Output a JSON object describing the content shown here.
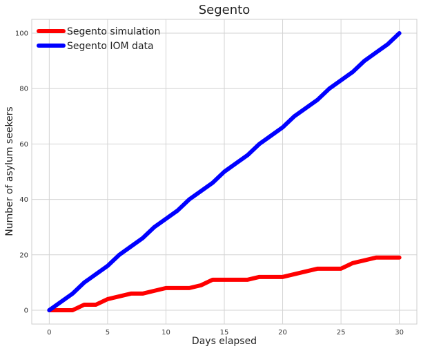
{
  "chart_data": {
    "type": "line",
    "title": "Segento",
    "xlabel": "Days elapsed",
    "ylabel": "Number of asylum seekers",
    "xlim": [
      -1.5,
      31.5
    ],
    "ylim": [
      -5,
      105
    ],
    "xticks": [
      0,
      5,
      10,
      15,
      20,
      25,
      30
    ],
    "yticks": [
      0,
      20,
      40,
      60,
      80,
      100
    ],
    "grid": true,
    "legend_position": "upper-left",
    "x": [
      0,
      1,
      2,
      3,
      4,
      5,
      6,
      7,
      8,
      9,
      10,
      11,
      12,
      13,
      14,
      15,
      16,
      17,
      18,
      19,
      20,
      21,
      22,
      23,
      24,
      25,
      26,
      27,
      28,
      29,
      30
    ],
    "series": [
      {
        "name": "Segento simulation",
        "color": "#ff0000",
        "values": [
          0,
          0,
          0,
          2,
          2,
          4,
          5,
          6,
          6,
          7,
          8,
          8,
          8,
          9,
          11,
          11,
          11,
          11,
          12,
          12,
          12,
          13,
          14,
          15,
          15,
          15,
          17,
          18,
          19,
          19,
          19
        ]
      },
      {
        "name": "Segento IOM data",
        "color": "#0000ff",
        "values": [
          0,
          3,
          6,
          10,
          13,
          16,
          20,
          23,
          26,
          30,
          33,
          36,
          40,
          43,
          46,
          50,
          53,
          56,
          60,
          63,
          66,
          70,
          73,
          76,
          80,
          83,
          86,
          90,
          93,
          96,
          100
        ]
      }
    ]
  }
}
